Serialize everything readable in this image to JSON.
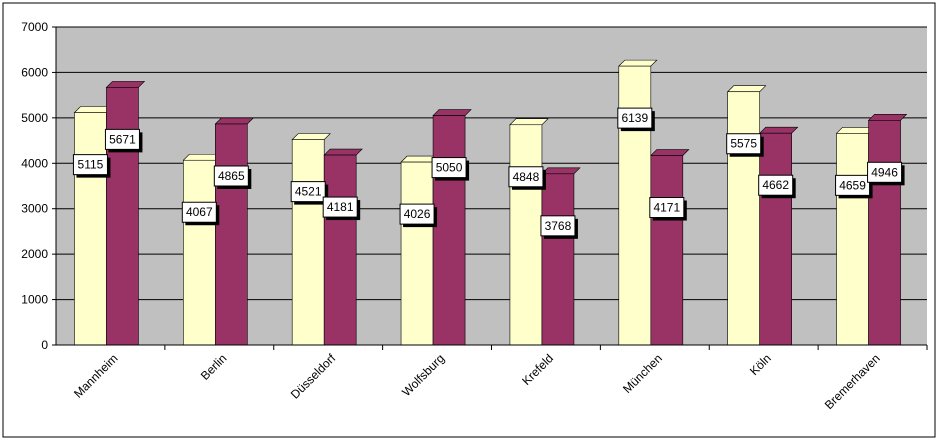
{
  "chart_data": {
    "type": "bar",
    "title": "",
    "xlabel": "",
    "ylabel": "",
    "ylim": [
      0,
      7000
    ],
    "yticks": [
      0,
      1000,
      2000,
      3000,
      4000,
      5000,
      6000,
      7000
    ],
    "grid": true,
    "legend": "none",
    "categories": [
      "Mannheim",
      "Berlin",
      "Düsseldorf",
      "Wolfsburg",
      "Krefeld",
      "München",
      "Köln",
      "Bremerhaven"
    ],
    "series": [
      {
        "values": [
          5115,
          4067,
          4521,
          4026,
          4848,
          6139,
          5575,
          4659
        ],
        "color": "#FFFFCC"
      },
      {
        "values": [
          5671,
          4865,
          4181,
          5050,
          3768,
          4171,
          4662,
          4946
        ],
        "color": "#993366"
      }
    ],
    "colors": {
      "plot_background": "#C0C0C0",
      "gridline": "#000000",
      "label_box": "#FFFFFF"
    }
  }
}
